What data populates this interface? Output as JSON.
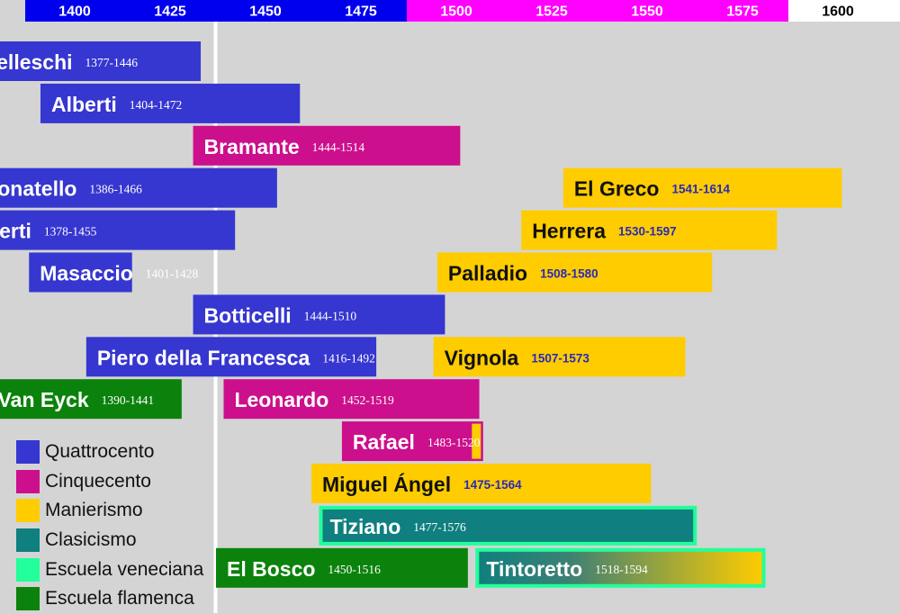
{
  "chart_data": {
    "type": "timeline",
    "x_axis": {
      "range": [
        1400,
        1600
      ],
      "ticks": [
        1400,
        1425,
        1450,
        1475,
        1500,
        1525,
        1550,
        1575,
        1600
      ],
      "tick_labels": [
        "1400",
        "1425",
        "1450",
        "1475",
        "1500",
        "1525",
        "1550",
        "1575",
        "1600"
      ],
      "bands": [
        {
          "from": 1400,
          "to": 1500,
          "color": "#0000ee",
          "label_color": "#ffffff"
        },
        {
          "from": 1500,
          "to": 1600,
          "color": "#ff00ff",
          "label_color": "#ffffff"
        },
        {
          "from": 1600,
          "to": 1625,
          "color": "#ffffff",
          "label_color": "#000000"
        }
      ]
    },
    "marker_year": 1450,
    "artists": [
      {
        "name": "Brunelleschi",
        "dates": "1377-1446",
        "start": 1377,
        "end": 1446,
        "style": "Quattrocento"
      },
      {
        "name": "Alberti",
        "dates": "1404-1472",
        "start": 1404,
        "end": 1472,
        "style": "Quattrocento"
      },
      {
        "name": "Bramante",
        "dates": "1444-1514",
        "start": 1444,
        "end": 1514,
        "style": "Cinquecento"
      },
      {
        "name": "El Greco",
        "dates": "1541-1614",
        "start": 1541,
        "end": 1614,
        "style": "Manierismo"
      },
      {
        "name": "Donatello",
        "dates": "1386-1466",
        "start": 1386,
        "end": 1466,
        "style": "Quattrocento"
      },
      {
        "name": "Herrera",
        "dates": "1530-1597",
        "start": 1530,
        "end": 1597,
        "style": "Manierismo"
      },
      {
        "name": "Ghiberti",
        "dates": "1378-1455",
        "start": 1378,
        "end": 1455,
        "style": "Quattrocento"
      },
      {
        "name": "Palladio",
        "dates": "1508-1580",
        "start": 1508,
        "end": 1580,
        "style": "Manierismo"
      },
      {
        "name": "Masaccio",
        "dates": "1401-1428",
        "start": 1401,
        "end": 1428,
        "style": "Quattrocento"
      },
      {
        "name": "Botticelli",
        "dates": "1444-1510",
        "start": 1444,
        "end": 1510,
        "style": "Quattrocento"
      },
      {
        "name": "Piero della Francesca",
        "dates": "1416-1492",
        "start": 1416,
        "end": 1492,
        "style": "Quattrocento"
      },
      {
        "name": "Vignola",
        "dates": "1507-1573",
        "start": 1507,
        "end": 1573,
        "style": "Manierismo"
      },
      {
        "name": "Van Eyck",
        "dates": "1390-1441",
        "start": 1390,
        "end": 1441,
        "style": "Escuela flamenca"
      },
      {
        "name": "Leonardo",
        "dates": "1452-1519",
        "start": 1452,
        "end": 1519,
        "style": "Cinquecento"
      },
      {
        "name": "Rafael",
        "dates": "1483-1520",
        "start": 1483,
        "end": 1520,
        "style": "Cinquecento"
      },
      {
        "name": "Miguel Ángel",
        "dates": "1475-1564",
        "start": 1475,
        "end": 1564,
        "style": "Manierismo"
      },
      {
        "name": "Tiziano",
        "dates": "1477-1576",
        "start": 1477,
        "end": 1576,
        "style": "Clasicismo"
      },
      {
        "name": "El Bosco",
        "dates": "1450-1516",
        "start": 1450,
        "end": 1516,
        "style": "Escuela flamenca"
      },
      {
        "name": "Tintoretto",
        "dates": "1518-1594",
        "start": 1518,
        "end": 1594,
        "style": "Clasicismo"
      }
    ],
    "legend": [
      {
        "label": "Quattrocento",
        "color": "#3636d0"
      },
      {
        "label": "Cinquecento",
        "color": "#cc0f8c"
      },
      {
        "label": "Manierismo",
        "color": "#ffcc00"
      },
      {
        "label": "Clasicismo",
        "color": "#0f7f7f"
      },
      {
        "label": "Escuela veneciana",
        "color": "#22ff9a"
      },
      {
        "label": "Escuela flamenca",
        "color": "#0b820b"
      }
    ]
  }
}
